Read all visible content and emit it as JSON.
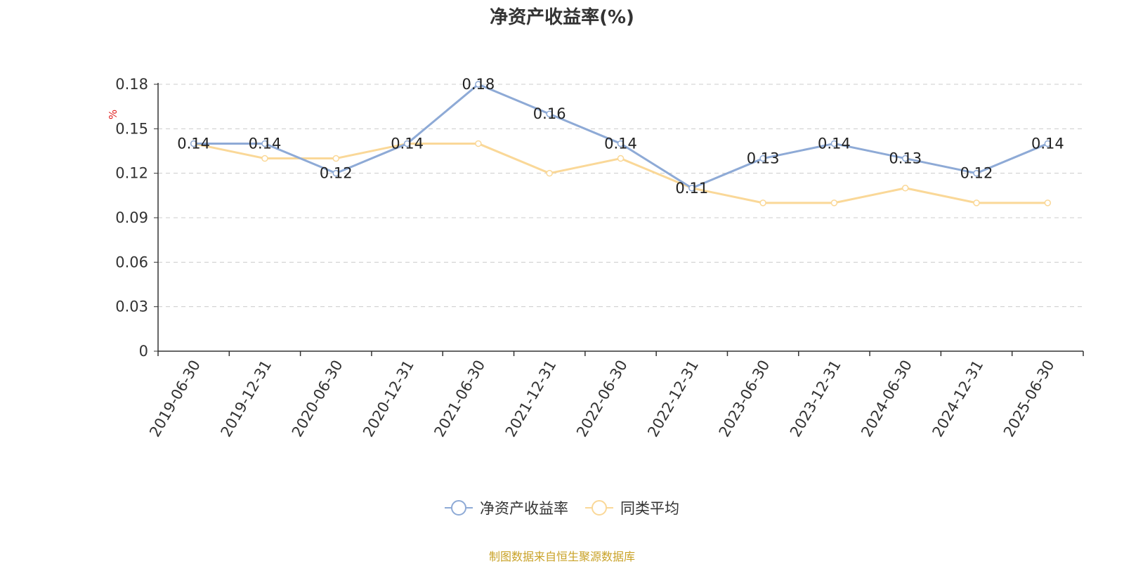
{
  "chart_data": {
    "type": "line",
    "title": "净资产收益率(%)",
    "ylabel": "%",
    "ylim": [
      0,
      0.18
    ],
    "yticks": [
      "0",
      "0.03",
      "0.06",
      "0.09",
      "0.12",
      "0.15",
      "0.18"
    ],
    "categories": [
      "2019-06-30",
      "2019-12-31",
      "2020-06-30",
      "2020-12-31",
      "2021-06-30",
      "2021-12-31",
      "2022-06-30",
      "2022-12-31",
      "2023-06-30",
      "2023-12-31",
      "2024-06-30",
      "2024-12-31",
      "2025-06-30"
    ],
    "series": [
      {
        "name": "净资产收益率",
        "color": "#8eaad6",
        "values": [
          0.14,
          0.14,
          0.12,
          0.14,
          0.18,
          0.16,
          0.14,
          0.11,
          0.13,
          0.14,
          0.13,
          0.12,
          0.14
        ],
        "labels": [
          "0.14",
          "0.14",
          "0.12",
          "0.14",
          "0.18",
          "0.16",
          "0.14",
          "0.11",
          "0.13",
          "0.14",
          "0.13",
          "0.12",
          "0.14"
        ]
      },
      {
        "name": "同类平均",
        "color": "#fad898",
        "values": [
          0.14,
          0.13,
          0.13,
          0.14,
          0.14,
          0.12,
          0.13,
          0.11,
          0.1,
          0.1,
          0.11,
          0.1,
          0.1
        ]
      }
    ],
    "grid": true,
    "legend_position": "bottom"
  },
  "source": "制图数据来自恒生聚源数据库"
}
